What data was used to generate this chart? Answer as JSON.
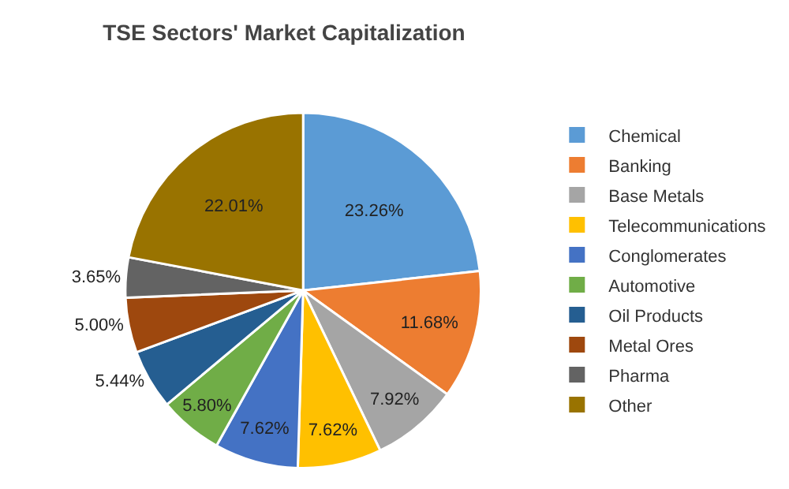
{
  "chart_data": {
    "type": "pie",
    "title": "TSE Sectors' Market Capitalization",
    "categories": [
      "Chemical",
      "Banking",
      "Base Metals",
      "Telecommunications",
      "Conglomerates",
      "Automotive",
      "Oil Products",
      "Metal Ores",
      "Pharma",
      "Other"
    ],
    "values": [
      23.26,
      11.68,
      7.92,
      7.62,
      7.62,
      5.8,
      5.44,
      5.0,
      3.65,
      22.01
    ],
    "colors": [
      "#5b9bd5",
      "#ed7d31",
      "#a5a5a5",
      "#ffc000",
      "#4472c4",
      "#70ad47",
      "#255e91",
      "#9e480e",
      "#636363",
      "#997300"
    ],
    "value_labels": [
      "23.26%",
      "11.68%",
      "7.92%",
      "7.62%",
      "7.62%",
      "5.80%",
      "5.44%",
      "5.00%",
      "3.65%",
      "22.01%"
    ],
    "legend": "right"
  }
}
